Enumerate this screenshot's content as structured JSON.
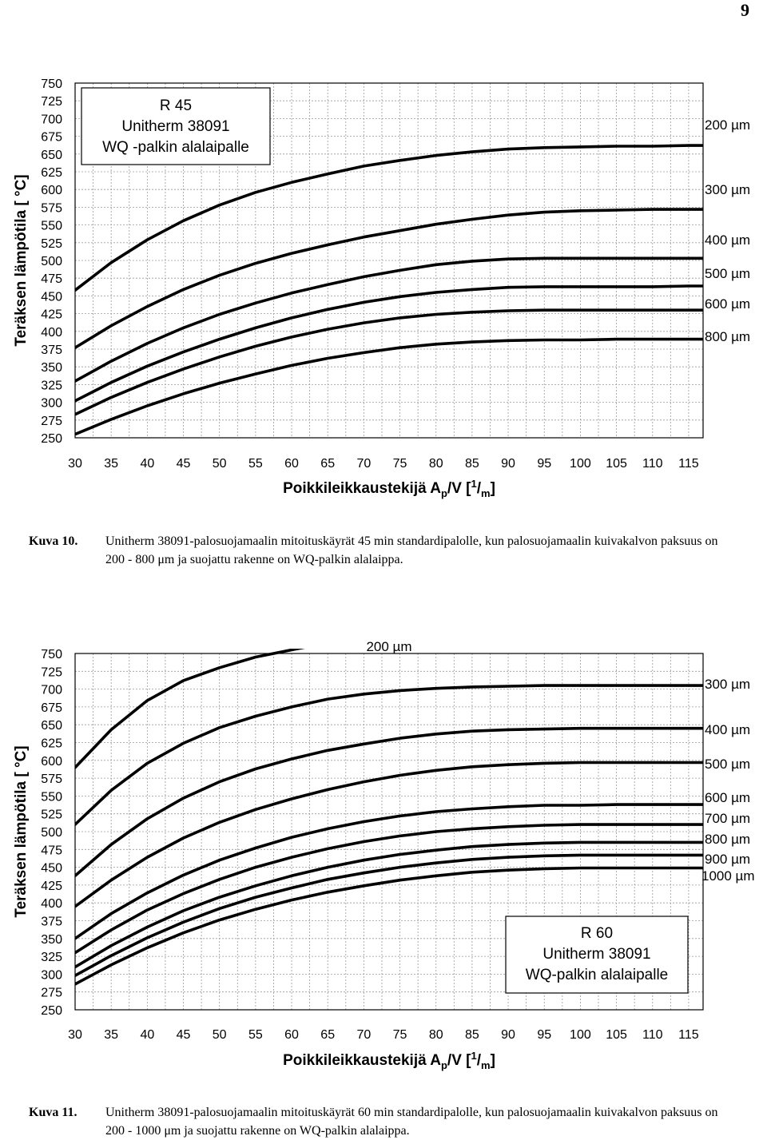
{
  "page_number": "9",
  "charts": [
    {
      "caption_number": "Kuva 10.",
      "caption_text": "Unitherm 38091-palosuojamaalin mitoituskäyrät 45 min standardipalolle, kun  palosuojamaalin kuivakalvon paksuus on 200 - 800 μm ja suojattu rakenne on WQ-palkin alalaippa.",
      "y_axis_label": "Teräksen lämpötila [ °C]",
      "x_axis_label": {
        "main": "Poikkileikkaustekijä A",
        "sub": "p",
        "mid": "/V [",
        "sup": "1",
        "slash": "/",
        "sub2": "m",
        "end": "]"
      },
      "box_lines": [
        "R 45",
        "Unitherm 38091",
        "WQ -palkin alalaipalle"
      ],
      "x_ticks": [
        "30",
        "35",
        "40",
        "45",
        "50",
        "55",
        "60",
        "65",
        "70",
        "75",
        "80",
        "85",
        "90",
        "95",
        "100",
        "105",
        "110",
        "115"
      ],
      "y_ticks": [
        "750",
        "725",
        "700",
        "675",
        "650",
        "625",
        "600",
        "575",
        "550",
        "525",
        "500",
        "475",
        "450",
        "425",
        "400",
        "375",
        "350",
        "325",
        "300",
        "275",
        "250"
      ]
    },
    {
      "caption_number": "Kuva 11.",
      "caption_text": "Unitherm 38091-palosuojamaalin mitoituskäyrät 60 min standardipalolle, kun  palosuojamaalin kuivakalvon paksuus on 200 - 1000 μm ja suojattu rakenne on WQ-palkin alalaippa.",
      "y_axis_label": "Teräksen lämpötila [ °C]",
      "x_axis_label": {
        "main": "Poikkileikkaustekijä A",
        "sub": "p",
        "mid": "/V [",
        "sup": "1",
        "slash": "/",
        "sub2": "m",
        "end": "]"
      },
      "box_lines": [
        "R 60",
        "Unitherm 38091",
        "WQ-palkin alalaipalle"
      ],
      "x_ticks": [
        "30",
        "35",
        "40",
        "45",
        "50",
        "55",
        "60",
        "65",
        "70",
        "75",
        "80",
        "85",
        "90",
        "95",
        "100",
        "105",
        "110",
        "115"
      ],
      "y_ticks": [
        "750",
        "725",
        "700",
        "675",
        "650",
        "625",
        "600",
        "575",
        "550",
        "525",
        "500",
        "475",
        "450",
        "425",
        "400",
        "375",
        "350",
        "325",
        "300",
        "275",
        "250"
      ]
    }
  ],
  "chart_data": [
    {
      "type": "line",
      "title": "R 45 Unitherm 38091 WQ -palkin alalaipalle",
      "xlabel": "Poikkileikkaustekijä Ap/V [1/m]",
      "ylabel": "Teräksen lämpötila [ °C]",
      "xlim": [
        30,
        117
      ],
      "ylim": [
        250,
        750
      ],
      "grid": true,
      "x": [
        30,
        35,
        40,
        45,
        50,
        55,
        60,
        65,
        70,
        75,
        80,
        85,
        90,
        95,
        100,
        105,
        110,
        115
      ],
      "series": [
        {
          "name": "200 µm",
          "values": [
            458,
            497,
            529,
            556,
            578,
            596,
            610,
            622,
            633,
            641,
            648,
            653,
            657,
            659,
            660,
            661,
            661,
            662
          ]
        },
        {
          "name": "300 µm",
          "values": [
            377,
            408,
            435,
            459,
            479,
            496,
            510,
            522,
            533,
            542,
            551,
            558,
            564,
            568,
            570,
            571,
            572,
            572
          ]
        },
        {
          "name": "400 µm",
          "values": [
            330,
            358,
            383,
            405,
            424,
            440,
            454,
            466,
            477,
            486,
            494,
            499,
            502,
            503,
            503,
            503,
            503,
            503
          ]
        },
        {
          "name": "500 µm",
          "values": [
            302,
            328,
            351,
            371,
            389,
            405,
            419,
            431,
            441,
            449,
            455,
            459,
            462,
            463,
            463,
            463,
            463,
            464
          ]
        },
        {
          "name": "600 µm",
          "values": [
            283,
            307,
            328,
            347,
            364,
            379,
            392,
            403,
            412,
            419,
            424,
            427,
            429,
            430,
            430,
            430,
            430,
            430
          ]
        },
        {
          "name": "800 µm",
          "values": [
            255,
            276,
            295,
            312,
            327,
            340,
            352,
            362,
            370,
            377,
            382,
            385,
            387,
            388,
            388,
            389,
            389,
            389
          ]
        }
      ]
    },
    {
      "type": "line",
      "title": "R 60 Unitherm 38091 WQ-palkin alalaipalle",
      "xlabel": "Poikkileikkaustekijä Ap/V [1/m]",
      "ylabel": "Teräksen lämpötila [ °C]",
      "xlim": [
        30,
        117
      ],
      "ylim": [
        250,
        750
      ],
      "grid": true,
      "x": [
        30,
        35,
        40,
        45,
        50,
        55,
        60,
        65,
        70,
        75,
        80,
        85,
        90,
        95,
        100,
        105,
        110,
        115
      ],
      "series": [
        {
          "name": "200 µm",
          "values": [
            590,
            643,
            684,
            712,
            730,
            745,
            755,
            null,
            null,
            null,
            null,
            null,
            null,
            null,
            null,
            null,
            null,
            null
          ]
        },
        {
          "name": "300 µm",
          "values": [
            510,
            558,
            596,
            624,
            646,
            662,
            675,
            686,
            693,
            698,
            701,
            703,
            704,
            705,
            705,
            705,
            705,
            705
          ]
        },
        {
          "name": "400 µm",
          "values": [
            438,
            482,
            518,
            547,
            570,
            588,
            602,
            614,
            623,
            631,
            637,
            641,
            643,
            644,
            645,
            645,
            645,
            645
          ]
        },
        {
          "name": "500 µm",
          "values": [
            395,
            432,
            464,
            491,
            513,
            531,
            546,
            559,
            570,
            579,
            586,
            591,
            594,
            596,
            597,
            597,
            597,
            597
          ]
        },
        {
          "name": "600 µm",
          "values": [
            350,
            385,
            414,
            439,
            460,
            477,
            492,
            504,
            514,
            522,
            528,
            532,
            535,
            537,
            537,
            538,
            538,
            538
          ]
        },
        {
          "name": "700 µm",
          "values": [
            330,
            362,
            390,
            413,
            433,
            450,
            464,
            476,
            486,
            494,
            500,
            504,
            507,
            509,
            510,
            510,
            510,
            510
          ]
        },
        {
          "name": "800 µm",
          "values": [
            310,
            340,
            366,
            389,
            408,
            424,
            438,
            450,
            460,
            468,
            474,
            479,
            482,
            484,
            485,
            485,
            485,
            485
          ]
        },
        {
          "name": "900 µm",
          "values": [
            298,
            326,
            351,
            373,
            392,
            408,
            421,
            433,
            442,
            450,
            456,
            461,
            464,
            466,
            467,
            467,
            467,
            467
          ]
        },
        {
          "name": "1000 µm",
          "values": [
            286,
            313,
            337,
            358,
            376,
            391,
            404,
            415,
            424,
            432,
            438,
            443,
            446,
            448,
            449,
            449,
            449,
            449
          ]
        }
      ]
    }
  ]
}
